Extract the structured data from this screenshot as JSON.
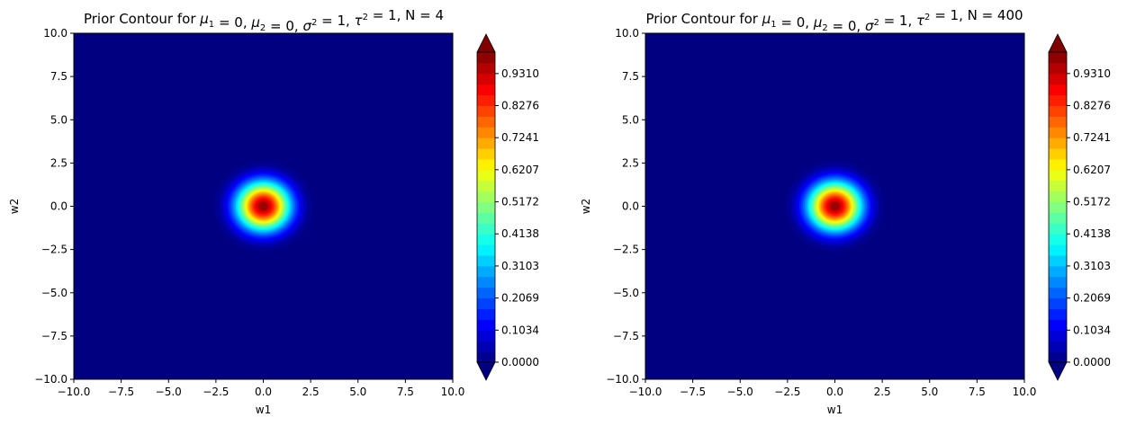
{
  "chart_data": [
    {
      "type": "contourf",
      "title": "Prior Contour for μ1 = 0, μ2 = 0, σ2 = 1, τ2 = 1, N = 4",
      "title_parts": [
        {
          "t": "Prior Contour for "
        },
        {
          "t": "μ",
          "i": true
        },
        {
          "t": "1",
          "sub": true
        },
        {
          "t": " = 0, "
        },
        {
          "t": "μ",
          "i": true
        },
        {
          "t": "2",
          "sub": true
        },
        {
          "t": " = 0, "
        },
        {
          "t": "σ",
          "i": true
        },
        {
          "t": "2",
          "sup": true
        },
        {
          "t": " = 1, "
        },
        {
          "t": "τ",
          "i": true
        },
        {
          "t": "2",
          "sup": true
        },
        {
          "t": " = 1, N = 4"
        }
      ],
      "xlabel": "w1",
      "ylabel": "w2",
      "xlim": [
        -10,
        10
      ],
      "ylim": [
        -10,
        10
      ],
      "xticks": [
        -10,
        -7.5,
        -5,
        -2.5,
        0,
        2.5,
        5,
        7.5,
        10
      ],
      "xtick_labels": [
        "−10.0",
        "−7.5",
        "−5.0",
        "−2.5",
        "0.0",
        "2.5",
        "5.0",
        "7.5",
        "10.0"
      ],
      "yticks": [
        -10,
        -7.5,
        -5,
        -2.5,
        0,
        2.5,
        5,
        7.5,
        10
      ],
      "ytick_labels": [
        "−10.0",
        "−7.5",
        "−5.0",
        "−2.5",
        "0.0",
        "2.5",
        "5.0",
        "7.5",
        "10.0"
      ],
      "density": {
        "mean": [
          0,
          0
        ],
        "variance": 1,
        "peak": 1.0
      },
      "colormap": "jet",
      "colorbar": {
        "vmin": 0,
        "vmax": 1.0,
        "levels": 30,
        "extend": "both",
        "ticks": [
          0.0,
          0.1034,
          0.2069,
          0.3103,
          0.4138,
          0.5172,
          0.6207,
          0.7241,
          0.8276,
          0.931
        ],
        "tick_labels": [
          "0.0000",
          "0.1034",
          "0.2069",
          "0.3103",
          "0.4138",
          "0.5172",
          "0.6207",
          "0.7241",
          "0.8276",
          "0.9310"
        ]
      }
    },
    {
      "type": "contourf",
      "title": "Prior Contour for μ1 = 0, μ2 = 0, σ2 = 1, τ2 = 1, N = 400",
      "title_parts": [
        {
          "t": "Prior Contour for "
        },
        {
          "t": "μ",
          "i": true
        },
        {
          "t": "1",
          "sub": true
        },
        {
          "t": " = 0, "
        },
        {
          "t": "μ",
          "i": true
        },
        {
          "t": "2",
          "sub": true
        },
        {
          "t": " = 0, "
        },
        {
          "t": "σ",
          "i": true
        },
        {
          "t": "2",
          "sup": true
        },
        {
          "t": " = 1, "
        },
        {
          "t": "τ",
          "i": true
        },
        {
          "t": "2",
          "sup": true
        },
        {
          "t": " = 1, N = 400"
        }
      ],
      "xlabel": "w1",
      "ylabel": "w2",
      "xlim": [
        -10,
        10
      ],
      "ylim": [
        -10,
        10
      ],
      "xticks": [
        -10,
        -7.5,
        -5,
        -2.5,
        0,
        2.5,
        5,
        7.5,
        10
      ],
      "xtick_labels": [
        "−10.0",
        "−7.5",
        "−5.0",
        "−2.5",
        "0.0",
        "2.5",
        "5.0",
        "7.5",
        "10.0"
      ],
      "yticks": [
        -10,
        -7.5,
        -5,
        -2.5,
        0,
        2.5,
        5,
        7.5,
        10
      ],
      "ytick_labels": [
        "−10.0",
        "−7.5",
        "−5.0",
        "−2.5",
        "0.0",
        "2.5",
        "5.0",
        "7.5",
        "10.0"
      ],
      "density": {
        "mean": [
          0,
          0
        ],
        "variance": 1,
        "peak": 1.0
      },
      "colormap": "jet",
      "colorbar": {
        "vmin": 0,
        "vmax": 1.0,
        "levels": 30,
        "extend": "both",
        "ticks": [
          0.0,
          0.1034,
          0.2069,
          0.3103,
          0.4138,
          0.5172,
          0.6207,
          0.7241,
          0.8276,
          0.931
        ],
        "tick_labels": [
          "0.0000",
          "0.1034",
          "0.2069",
          "0.3103",
          "0.4138",
          "0.5172",
          "0.6207",
          "0.7241",
          "0.8276",
          "0.9310"
        ]
      }
    }
  ]
}
